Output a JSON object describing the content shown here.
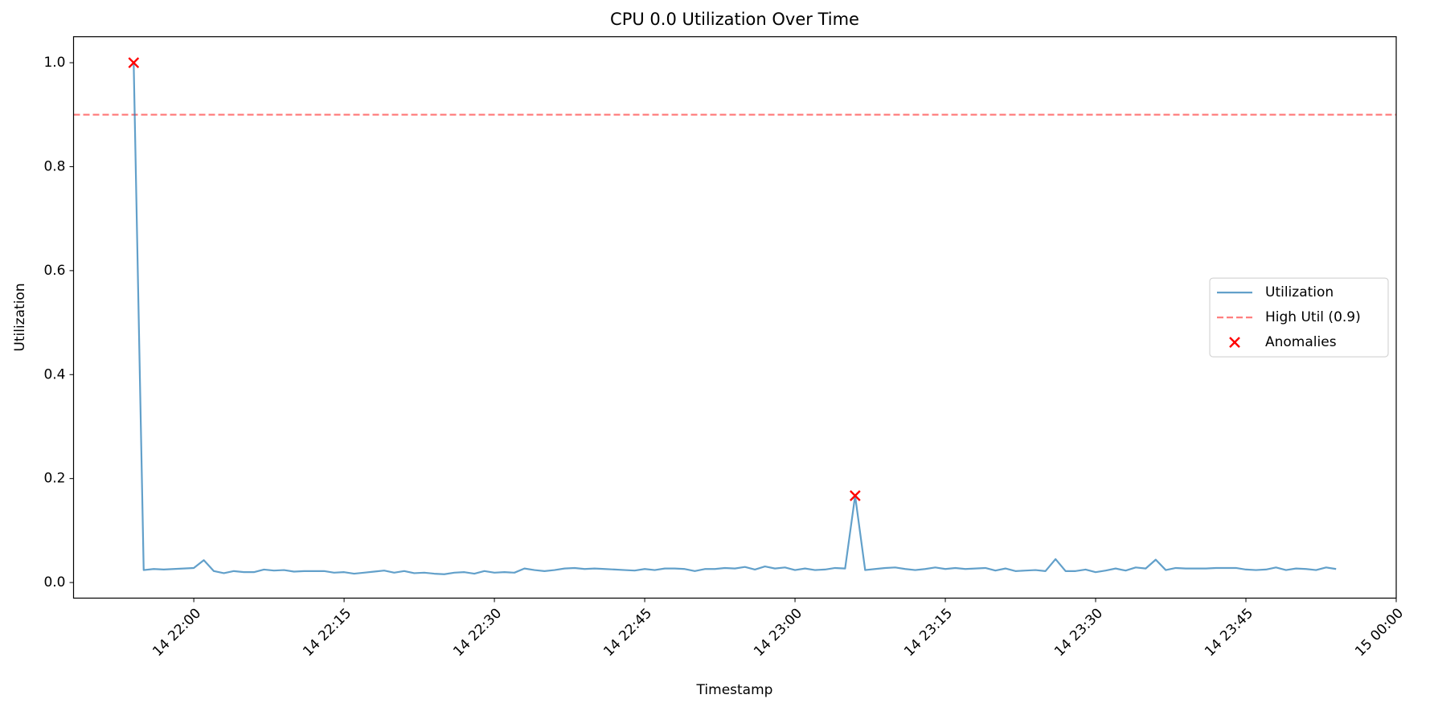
{
  "chart_data": {
    "type": "line",
    "title": "CPU 0.0 Utilization Over Time",
    "xlabel": "Timestamp",
    "ylabel": "Utilization",
    "xlim": [
      "14 21:48",
      "15 00:00"
    ],
    "xticks": [
      "14 22:00",
      "14 22:15",
      "14 22:30",
      "14 22:45",
      "14 23:00",
      "14 23:15",
      "14 23:30",
      "14 23:45",
      "15 00:00"
    ],
    "ylim": [
      -0.03,
      1.05
    ],
    "yticks": [
      {
        "value": 0,
        "label": "0.0"
      },
      {
        "value": 0.2,
        "label": "0.2"
      },
      {
        "value": 0.4,
        "label": "0.4"
      },
      {
        "value": 0.6,
        "label": "0.6"
      },
      {
        "value": 0.8,
        "label": "0.8"
      },
      {
        "value": 1,
        "label": "1.0"
      }
    ],
    "legend": "center right",
    "series": [
      {
        "name": "Utilization",
        "color": "#1f77b4",
        "x": [
          "14 21:54",
          "14 21:55",
          "14 21:56",
          "14 21:57",
          "14 21:58",
          "14 21:59",
          "14 22:00",
          "14 22:01",
          "14 22:02",
          "14 22:03",
          "14 22:04",
          "14 22:05",
          "14 22:06",
          "14 22:07",
          "14 22:08",
          "14 22:09",
          "14 22:10",
          "14 22:11",
          "14 22:12",
          "14 22:13",
          "14 22:14",
          "14 22:15",
          "14 22:16",
          "14 22:17",
          "14 22:18",
          "14 22:19",
          "14 22:20",
          "14 22:21",
          "14 22:22",
          "14 22:23",
          "14 22:24",
          "14 22:25",
          "14 22:26",
          "14 22:27",
          "14 22:28",
          "14 22:29",
          "14 22:30",
          "14 22:31",
          "14 22:32",
          "14 22:33",
          "14 22:34",
          "14 22:35",
          "14 22:36",
          "14 22:37",
          "14 22:38",
          "14 22:39",
          "14 22:40",
          "14 22:41",
          "14 22:42",
          "14 22:43",
          "14 22:44",
          "14 22:45",
          "14 22:46",
          "14 22:47",
          "14 22:48",
          "14 22:49",
          "14 22:50",
          "14 22:51",
          "14 22:52",
          "14 22:53",
          "14 22:54",
          "14 22:55",
          "14 22:56",
          "14 22:57",
          "14 22:58",
          "14 22:59",
          "14 23:00",
          "14 23:01",
          "14 23:02",
          "14 23:03",
          "14 23:04",
          "14 23:05",
          "14 23:06",
          "14 23:07",
          "14 23:08",
          "14 23:09",
          "14 23:10",
          "14 23:11",
          "14 23:12",
          "14 23:13",
          "14 23:14",
          "14 23:15",
          "14 23:16",
          "14 23:17",
          "14 23:18",
          "14 23:19",
          "14 23:20",
          "14 23:21",
          "14 23:22",
          "14 23:23",
          "14 23:24",
          "14 23:25",
          "14 23:26",
          "14 23:27",
          "14 23:28",
          "14 23:29",
          "14 23:30",
          "14 23:31",
          "14 23:32",
          "14 23:33",
          "14 23:34",
          "14 23:35",
          "14 23:36",
          "14 23:37",
          "14 23:38",
          "14 23:39",
          "14 23:40",
          "14 23:41",
          "14 23:42",
          "14 23:43",
          "14 23:44",
          "14 23:45",
          "14 23:46",
          "14 23:47",
          "14 23:48",
          "14 23:49",
          "14 23:50",
          "14 23:51",
          "14 23:52",
          "14 23:53",
          "14 23:54"
        ],
        "values": [
          1.0,
          0.024,
          0.026,
          0.025,
          0.026,
          0.027,
          0.028,
          0.043,
          0.022,
          0.018,
          0.022,
          0.02,
          0.02,
          0.025,
          0.023,
          0.024,
          0.021,
          0.022,
          0.022,
          0.022,
          0.019,
          0.02,
          0.017,
          0.019,
          0.021,
          0.023,
          0.019,
          0.022,
          0.018,
          0.019,
          0.017,
          0.016,
          0.019,
          0.02,
          0.017,
          0.022,
          0.019,
          0.02,
          0.019,
          0.027,
          0.024,
          0.022,
          0.024,
          0.027,
          0.028,
          0.026,
          0.027,
          0.026,
          0.025,
          0.024,
          0.023,
          0.026,
          0.024,
          0.027,
          0.027,
          0.026,
          0.022,
          0.026,
          0.026,
          0.028,
          0.027,
          0.03,
          0.025,
          0.031,
          0.027,
          0.029,
          0.024,
          0.027,
          0.024,
          0.025,
          0.028,
          0.027,
          0.167,
          0.024,
          0.026,
          0.028,
          0.029,
          0.026,
          0.024,
          0.026,
          0.029,
          0.026,
          0.028,
          0.026,
          0.027,
          0.028,
          0.023,
          0.027,
          0.022,
          0.023,
          0.024,
          0.022,
          0.045,
          0.022,
          0.022,
          0.025,
          0.02,
          0.023,
          0.027,
          0.023,
          0.029,
          0.027,
          0.044,
          0.024,
          0.028,
          0.027,
          0.027,
          0.027,
          0.028,
          0.028,
          0.028,
          0.025,
          0.024,
          0.025,
          0.029,
          0.024,
          0.027,
          0.026,
          0.024,
          0.029,
          0.026
        ]
      },
      {
        "name": "Anomalies",
        "type": "scatter",
        "color": "#ff0000",
        "x": [
          "14 21:54",
          "14 23:06"
        ],
        "values": [
          1.0,
          0.167
        ]
      }
    ],
    "hlines": [
      {
        "name": "High Util (0.9)",
        "value": 0.9,
        "color": "#ff0000"
      }
    ]
  }
}
